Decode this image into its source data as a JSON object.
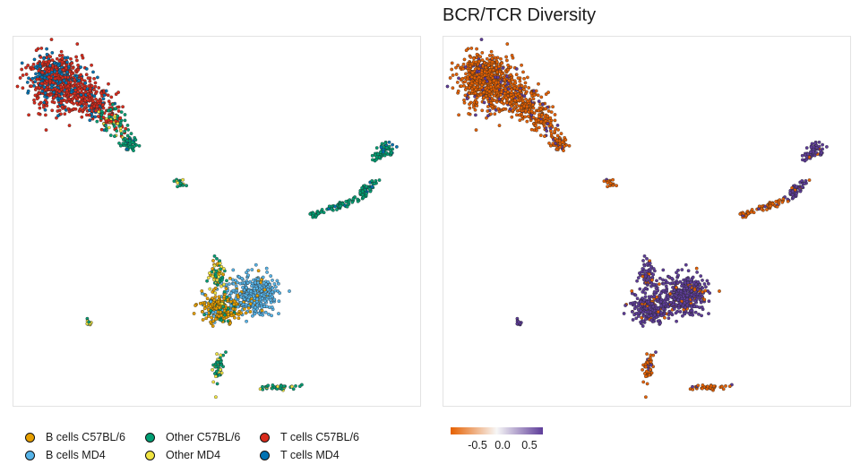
{
  "title": "BCR/TCR Diversity",
  "chart_data": [
    {
      "type": "scatter",
      "title": "",
      "xlabel": "",
      "ylabel": "",
      "grid": false,
      "legend_placement": "bottom-left",
      "series": [
        {
          "name": "B cells C57BL/6",
          "color": "#E69F00"
        },
        {
          "name": "B cells MD4",
          "color": "#56B4E9"
        },
        {
          "name": "Other C57BL/6",
          "color": "#009E73"
        },
        {
          "name": "Other MD4",
          "color": "#F0E442"
        },
        {
          "name": "T cells C57BL/6",
          "color": "#D55E00"
        },
        {
          "name": "T cells MD4",
          "color": "#0072B2"
        }
      ]
    },
    {
      "type": "scatter",
      "title": "BCR/TCR Diversity",
      "xlabel": "",
      "ylabel": "",
      "grid": false,
      "colorscale": {
        "low": "#E66101",
        "mid": "#F7F7F7",
        "high": "#5E3C99",
        "ticks": [
          "-0.5",
          "0.0",
          "0.5"
        ],
        "range": [
          -0.75,
          0.75
        ]
      }
    }
  ],
  "legend": {
    "items": [
      {
        "label": "B cells C57BL/6",
        "color": "#E69F00"
      },
      {
        "label": "B cells MD4",
        "color": "#56B4E9"
      },
      {
        "label": "Other C57BL/6",
        "color": "#009E73"
      },
      {
        "label": "Other MD4",
        "color": "#F0E442"
      },
      {
        "label": "T cells C57BL/6",
        "color": "#D92B1C"
      },
      {
        "label": "T cells MD4",
        "color": "#0072B2"
      }
    ]
  },
  "colorbar": {
    "ticks": [
      "-0.5",
      "0.0",
      "0.5"
    ]
  }
}
